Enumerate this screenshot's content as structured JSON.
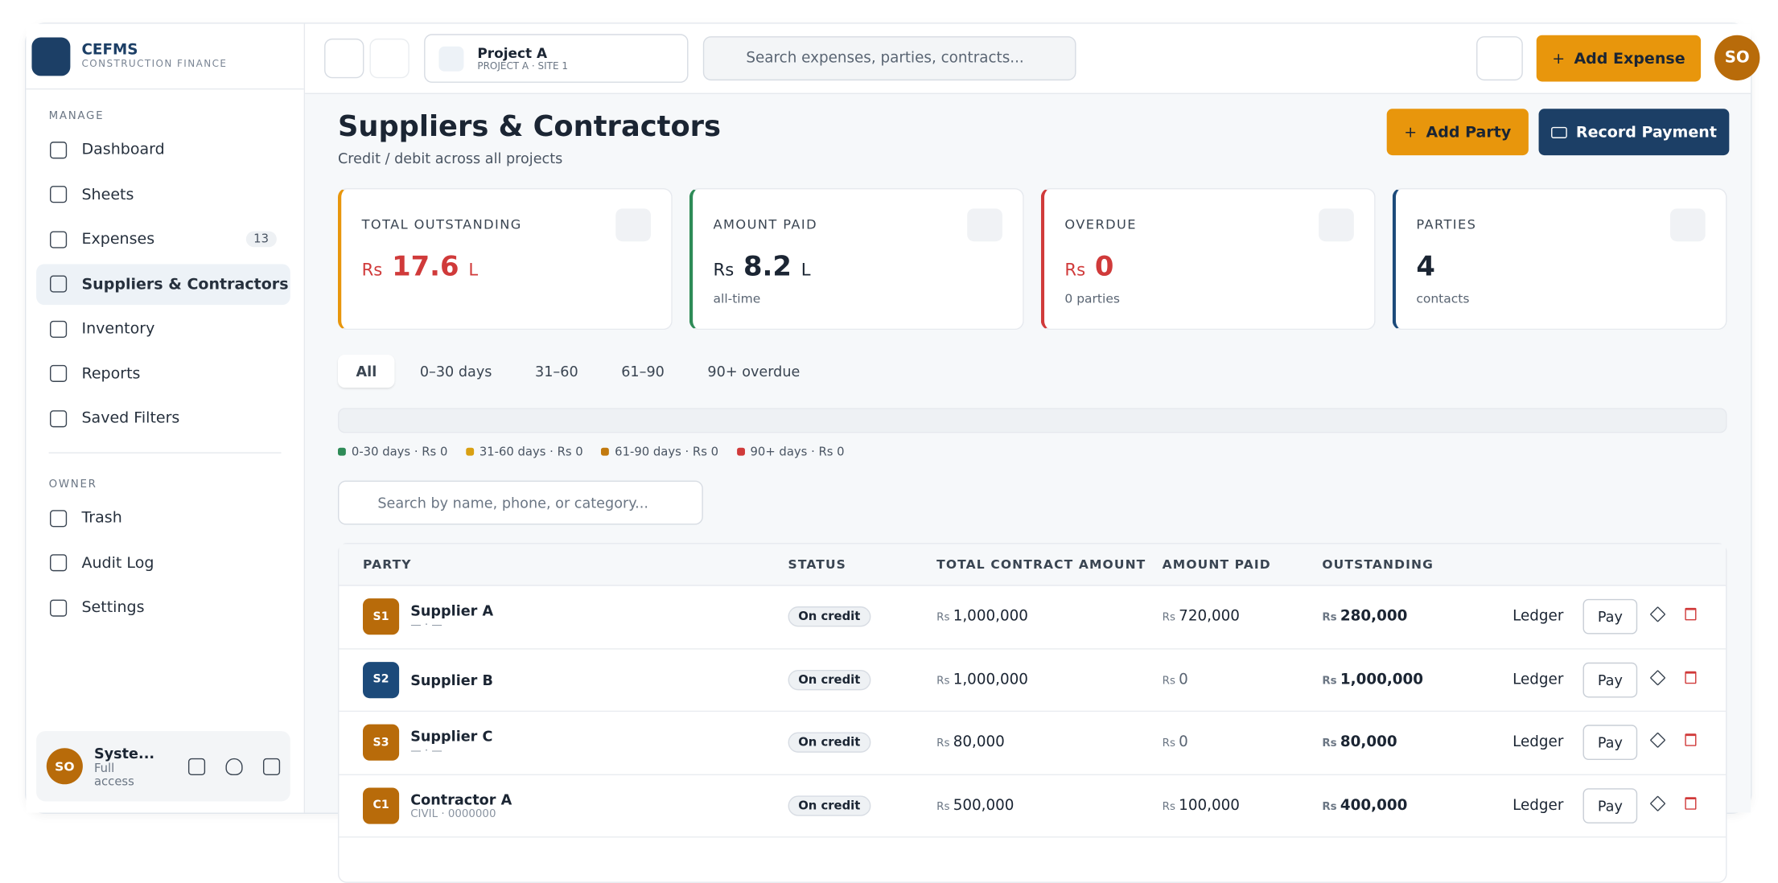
{
  "brand": {
    "name": "CEFMS",
    "tagline": "CONSTRUCTION FINANCE"
  },
  "sidebar": {
    "sections": [
      {
        "label": "MANAGE",
        "items": [
          {
            "label": "Dashboard"
          },
          {
            "label": "Sheets"
          },
          {
            "label": "Expenses",
            "badge": 13
          },
          {
            "label": "Suppliers & Contractors",
            "active": true
          },
          {
            "label": "Inventory"
          },
          {
            "label": "Reports"
          },
          {
            "label": "Saved Filters"
          }
        ]
      },
      {
        "label": "OWNER",
        "items": [
          {
            "label": "Trash"
          },
          {
            "label": "Audit Log"
          },
          {
            "label": "Settings"
          }
        ]
      }
    ],
    "user": {
      "initials": "SO",
      "name": "Syste...",
      "role": "Full access"
    }
  },
  "topbar": {
    "project": "Project A",
    "site": "PROJECT A · SITE 1",
    "search": "Search expenses, parties, contracts...",
    "add": "Add Expense",
    "avatar": "SO"
  },
  "header": {
    "title": "Suppliers & Contractors",
    "subtitle": "Credit / debit across all projects",
    "primary": "Add Party",
    "secondary": "Record Payment"
  },
  "cards": [
    {
      "label": "TOTAL OUTSTANDING",
      "prefix": "Rs",
      "value": "17.6",
      "suffix": "L",
      "color": "#e8960c",
      "valueColor": "#d03a3a"
    },
    {
      "label": "AMOUNT PAID",
      "prefix": "Rs",
      "value": "8.2",
      "suffix": "L",
      "note": "all-time",
      "color": "#2e8b57",
      "valueColor": "#1b2533"
    },
    {
      "label": "OVERDUE",
      "prefix": "Rs",
      "value": "0",
      "note": "0 parties",
      "color": "#d03a3a",
      "valueColor": "#d03a3a"
    },
    {
      "label": "PARTIES",
      "value": "4",
      "note": "contacts",
      "color": "#1c4a7a",
      "valueColor": "#1b2533"
    }
  ],
  "tabs": [
    {
      "label": "All",
      "active": true
    },
    {
      "label": "0–30 days"
    },
    {
      "label": "31–60"
    },
    {
      "label": "61–90"
    },
    {
      "label": "90+ overdue"
    }
  ],
  "legend": [
    {
      "label": "0-30 days · Rs 0",
      "color": "#2e8b57"
    },
    {
      "label": "31-60 days · Rs 0",
      "color": "#d9a012"
    },
    {
      "label": "61-90 days · Rs 0",
      "color": "#c27a0e"
    },
    {
      "label": "90+ days · Rs 0",
      "color": "#d03a3a"
    }
  ],
  "search": "Search by name, phone, or category...",
  "table": {
    "columns": [
      "PARTY",
      "STATUS",
      "TOTAL CONTRACT AMOUNT",
      "AMOUNT PAID",
      "OUTSTANDING"
    ],
    "currency": "Rs",
    "actions": [
      "Ledger",
      "Pay"
    ],
    "rows": [
      {
        "initials": "S1",
        "name": "Supplier A",
        "sub": "— · —",
        "status": "On credit",
        "total": "1,000,000",
        "paid": "720,000",
        "outstanding": "280,000",
        "color": "#b86b0a"
      },
      {
        "initials": "S2",
        "name": "Supplier B",
        "status": "On credit",
        "total": "1,000,000",
        "paid": "0",
        "outstanding": "1,000,000",
        "color": "#1c4a7a"
      },
      {
        "initials": "S3",
        "name": "Supplier C",
        "sub": "— · —",
        "status": "On credit",
        "total": "80,000",
        "paid": "0",
        "outstanding": "80,000",
        "color": "#b86b0a"
      },
      {
        "initials": "C1",
        "name": "Contractor A",
        "sub": "CIVIL · 0000000",
        "status": "On credit",
        "total": "500,000",
        "paid": "100,000",
        "outstanding": "400,000",
        "color": "#b86b0a"
      }
    ]
  }
}
